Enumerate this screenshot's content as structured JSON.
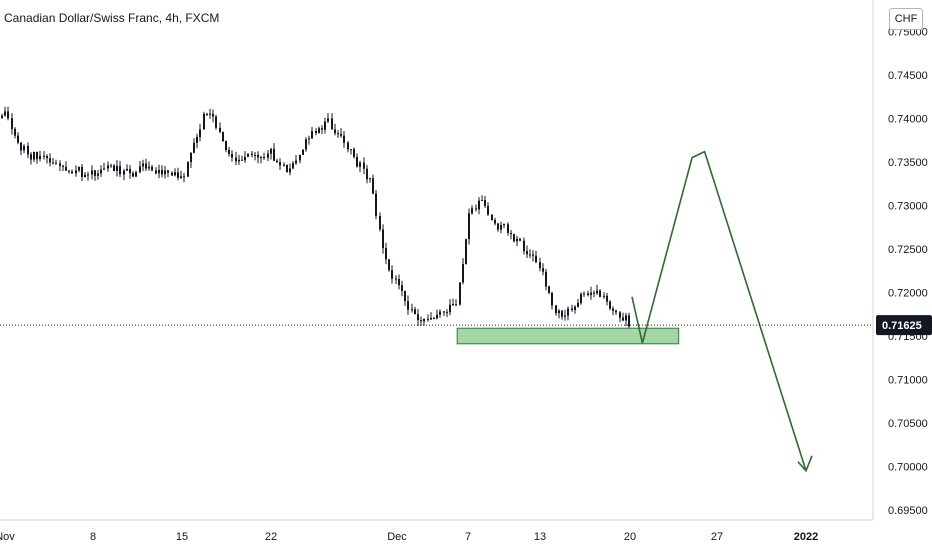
{
  "title": "Canadian Dollar/Swiss Franc, 4h, FXCM",
  "currency_label": "CHF",
  "colors": {
    "candle": "#131722",
    "zone_fill": "#a5d6a7",
    "zone_border": "#2e7d32",
    "projection": "#2e6b2e",
    "last_price_tag_bg": "#131722",
    "last_price_tag_text": "#ffffff"
  },
  "chart_data": {
    "type": "candlestick",
    "symbol": "Canadian Dollar/Swiss Franc",
    "interval": "4h",
    "source": "FXCM",
    "y_axis": {
      "side": "right",
      "range": [
        0.6945,
        0.7505
      ],
      "ticks": [
        {
          "value": 0.75,
          "label": "0.75000"
        },
        {
          "value": 0.745,
          "label": "0.74500"
        },
        {
          "value": 0.74,
          "label": "0.74000"
        },
        {
          "value": 0.735,
          "label": "0.73500"
        },
        {
          "value": 0.73,
          "label": "0.73000"
        },
        {
          "value": 0.725,
          "label": "0.72500"
        },
        {
          "value": 0.72,
          "label": "0.72000"
        },
        {
          "value": 0.715,
          "label": "0.71500"
        },
        {
          "value": 0.71,
          "label": "0.71000"
        },
        {
          "value": 0.705,
          "label": "0.70500"
        },
        {
          "value": 0.7,
          "label": "0.70000"
        },
        {
          "value": 0.695,
          "label": "0.69500"
        }
      ]
    },
    "x_axis": {
      "ticks": [
        {
          "label": "Nov",
          "bold": false
        },
        {
          "label": "8",
          "bold": false
        },
        {
          "label": "15",
          "bold": false
        },
        {
          "label": "22",
          "bold": false
        },
        {
          "label": "Dec",
          "bold": false
        },
        {
          "label": "7",
          "bold": false
        },
        {
          "label": "13",
          "bold": false
        },
        {
          "label": "20",
          "bold": false
        },
        {
          "label": "27",
          "bold": false
        },
        {
          "label": "2022",
          "bold": true
        }
      ]
    },
    "last_price": {
      "value": 0.71625,
      "label": "0.71625"
    },
    "price_path": [
      {
        "date": "Nov 1",
        "price": 0.7405
      },
      {
        "date": "Nov 2",
        "price": 0.737
      },
      {
        "date": "Nov 3",
        "price": 0.7355
      },
      {
        "date": "Nov 4",
        "price": 0.736
      },
      {
        "date": "Nov 5",
        "price": 0.7345
      },
      {
        "date": "Nov 8",
        "price": 0.7335
      },
      {
        "date": "Nov 9",
        "price": 0.7345
      },
      {
        "date": "Nov 10",
        "price": 0.734
      },
      {
        "date": "Nov 11",
        "price": 0.7335
      },
      {
        "date": "Nov 12",
        "price": 0.7345
      },
      {
        "date": "Nov 15",
        "price": 0.733
      },
      {
        "date": "Nov 16",
        "price": 0.7375
      },
      {
        "date": "Nov 17",
        "price": 0.7415
      },
      {
        "date": "Nov 18",
        "price": 0.7375
      },
      {
        "date": "Nov 19",
        "price": 0.735
      },
      {
        "date": "Nov 22",
        "price": 0.736
      },
      {
        "date": "Nov 23",
        "price": 0.734
      },
      {
        "date": "Nov 24",
        "price": 0.736
      },
      {
        "date": "Nov 25",
        "price": 0.7385
      },
      {
        "date": "Nov 26",
        "price": 0.7395
      },
      {
        "date": "Nov 29",
        "price": 0.733
      },
      {
        "date": "Nov 30",
        "price": 0.724
      },
      {
        "date": "Dec 1",
        "price": 0.7205
      },
      {
        "date": "Dec 2",
        "price": 0.718
      },
      {
        "date": "Dec 3",
        "price": 0.717
      },
      {
        "date": "Dec 6",
        "price": 0.7185
      },
      {
        "date": "Dec 7",
        "price": 0.729
      },
      {
        "date": "Dec 8",
        "price": 0.731
      },
      {
        "date": "Dec 9",
        "price": 0.728
      },
      {
        "date": "Dec 10",
        "price": 0.7275
      },
      {
        "date": "Dec 13",
        "price": 0.723
      },
      {
        "date": "Dec 14",
        "price": 0.718
      },
      {
        "date": "Dec 15",
        "price": 0.7175
      },
      {
        "date": "Dec 16",
        "price": 0.7195
      },
      {
        "date": "Dec 17",
        "price": 0.7205
      },
      {
        "date": "Dec 20",
        "price": 0.71625
      }
    ],
    "support_zone": {
      "date_from": "Dec 6",
      "date_to": "Dec 24",
      "price_low": 0.7141,
      "price_high": 0.7159
    },
    "projection_path": [
      {
        "date": "Dec 20",
        "price": 0.7195
      },
      {
        "date": "Dec 21",
        "price": 0.7142
      },
      {
        "date": "Dec 25",
        "price": 0.7355
      },
      {
        "date": "Dec 26",
        "price": 0.7362
      },
      {
        "date": "Jan 1",
        "price": 0.6995
      }
    ]
  }
}
